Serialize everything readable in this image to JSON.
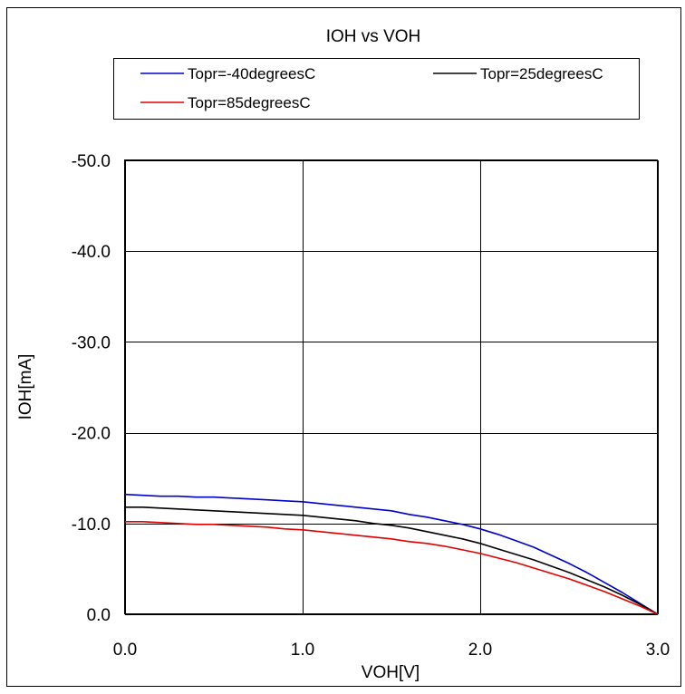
{
  "chart_data": {
    "type": "line",
    "title": "IOH vs VOH",
    "xlabel": "VOH[V]",
    "ylabel": "IOH[mA]",
    "xlim": [
      0.0,
      3.0
    ],
    "ylim": [
      0.0,
      -50.0
    ],
    "xticks": [
      0.0,
      1.0,
      2.0,
      3.0
    ],
    "xtick_labels": [
      "0.0",
      "1.0",
      "2.0",
      "3.0"
    ],
    "yticks": [
      0.0,
      -10.0,
      -20.0,
      -30.0,
      -40.0,
      -50.0
    ],
    "ytick_labels": [
      "0.0",
      "-10.0",
      "-20.0",
      "-30.0",
      "-40.0",
      "-50.0"
    ],
    "grid": true,
    "legend_position": "top",
    "series": [
      {
        "name": "Topr=-40degreesC",
        "color": "#0000cc",
        "x": [
          0.0,
          0.1,
          0.2,
          0.3,
          0.4,
          0.5,
          0.6,
          0.7,
          0.8,
          0.9,
          1.0,
          1.1,
          1.2,
          1.3,
          1.4,
          1.5,
          1.6,
          1.7,
          1.8,
          1.9,
          2.0,
          2.1,
          2.2,
          2.3,
          2.4,
          2.5,
          2.6,
          2.7,
          2.8,
          2.9,
          3.0
        ],
        "y": [
          -13.2,
          -13.1,
          -13.0,
          -13.0,
          -12.9,
          -12.9,
          -12.8,
          -12.7,
          -12.6,
          -12.5,
          -12.4,
          -12.2,
          -12.0,
          -11.8,
          -11.6,
          -11.4,
          -11.0,
          -10.7,
          -10.3,
          -9.9,
          -9.4,
          -8.8,
          -8.1,
          -7.4,
          -6.5,
          -5.6,
          -4.6,
          -3.5,
          -2.4,
          -1.2,
          0.0
        ]
      },
      {
        "name": "Topr=25degreesC",
        "color": "#000000",
        "x": [
          0.0,
          0.1,
          0.2,
          0.3,
          0.4,
          0.5,
          0.6,
          0.7,
          0.8,
          0.9,
          1.0,
          1.1,
          1.2,
          1.3,
          1.4,
          1.5,
          1.6,
          1.7,
          1.8,
          1.9,
          2.0,
          2.1,
          2.2,
          2.3,
          2.4,
          2.5,
          2.6,
          2.7,
          2.8,
          2.9,
          3.0
        ],
        "y": [
          -11.8,
          -11.8,
          -11.7,
          -11.6,
          -11.5,
          -11.4,
          -11.3,
          -11.2,
          -11.1,
          -11.0,
          -10.9,
          -10.7,
          -10.5,
          -10.3,
          -10.0,
          -9.8,
          -9.5,
          -9.1,
          -8.7,
          -8.3,
          -7.8,
          -7.2,
          -6.6,
          -6.0,
          -5.3,
          -4.6,
          -3.8,
          -3.0,
          -2.1,
          -1.1,
          0.0
        ]
      },
      {
        "name": "Topr=85degreesC",
        "color": "#e00000",
        "x": [
          0.0,
          0.1,
          0.2,
          0.3,
          0.4,
          0.5,
          0.6,
          0.7,
          0.8,
          0.9,
          1.0,
          1.1,
          1.2,
          1.3,
          1.4,
          1.5,
          1.6,
          1.7,
          1.8,
          1.9,
          2.0,
          2.1,
          2.2,
          2.3,
          2.4,
          2.5,
          2.6,
          2.7,
          2.8,
          2.9,
          3.0
        ],
        "y": [
          -10.2,
          -10.2,
          -10.1,
          -10.0,
          -9.9,
          -9.9,
          -9.8,
          -9.7,
          -9.6,
          -9.4,
          -9.3,
          -9.1,
          -8.9,
          -8.7,
          -8.5,
          -8.3,
          -8.0,
          -7.8,
          -7.5,
          -7.1,
          -6.7,
          -6.2,
          -5.7,
          -5.1,
          -4.5,
          -3.9,
          -3.2,
          -2.5,
          -1.7,
          -0.9,
          0.0
        ]
      }
    ]
  }
}
